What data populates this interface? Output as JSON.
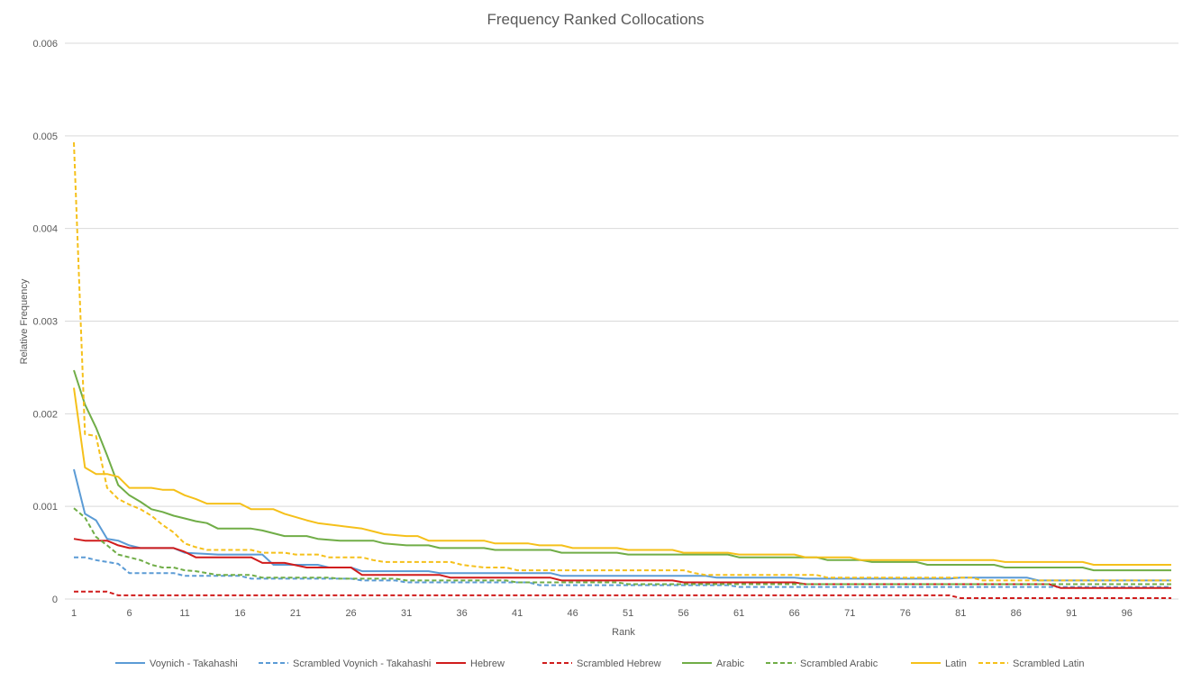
{
  "chart_data": {
    "type": "line",
    "title": "Frequency Ranked Collocations",
    "xlabel": "Rank",
    "ylabel": "Relative Frequency",
    "xlim": [
      1,
      100
    ],
    "ylim": [
      0,
      0.006
    ],
    "x_ticks": [
      1,
      6,
      11,
      16,
      21,
      26,
      31,
      36,
      41,
      46,
      51,
      56,
      61,
      66,
      71,
      76,
      81,
      86,
      91,
      96
    ],
    "y_ticks": [
      "0",
      "0.001",
      "0.002",
      "0.003",
      "0.004",
      "0.005",
      "0.006"
    ],
    "grid": "horizontal",
    "legend_position": "bottom",
    "series": [
      {
        "name": "Voynich - Takahashi",
        "color": "#5B9BD5",
        "dash": "solid",
        "points": [
          [
            1,
            0.0014
          ],
          [
            2,
            0.00092
          ],
          [
            3,
            0.00085
          ],
          [
            4,
            0.00065
          ],
          [
            5,
            0.00063
          ],
          [
            6,
            0.00058
          ],
          [
            7,
            0.00055
          ],
          [
            10,
            0.00055
          ],
          [
            11,
            0.0005
          ],
          [
            14,
            0.00048
          ],
          [
            18,
            0.00048
          ],
          [
            19,
            0.00037
          ],
          [
            23,
            0.00037
          ],
          [
            24,
            0.00034
          ],
          [
            26,
            0.00034
          ],
          [
            27,
            0.0003
          ],
          [
            33,
            0.0003
          ],
          [
            34,
            0.00028
          ],
          [
            44,
            0.00028
          ],
          [
            45,
            0.00025
          ],
          [
            58,
            0.00025
          ],
          [
            59,
            0.00023
          ],
          [
            66,
            0.00023
          ],
          [
            67,
            0.00022
          ],
          [
            80,
            0.00022
          ],
          [
            81,
            0.00023
          ],
          [
            87,
            0.00023
          ],
          [
            88,
            0.0002
          ],
          [
            100,
            0.0002
          ]
        ]
      },
      {
        "name": "Scrambled Voynich - Takahashi",
        "color": "#5B9BD5",
        "dash": "dashed",
        "points": [
          [
            1,
            0.00045
          ],
          [
            2,
            0.00045
          ],
          [
            3,
            0.00042
          ],
          [
            5,
            0.00038
          ],
          [
            6,
            0.00028
          ],
          [
            10,
            0.00028
          ],
          [
            11,
            0.00025
          ],
          [
            16,
            0.00025
          ],
          [
            17,
            0.00022
          ],
          [
            26,
            0.00022
          ],
          [
            27,
            0.0002
          ],
          [
            30,
            0.0002
          ],
          [
            31,
            0.00018
          ],
          [
            42,
            0.00018
          ],
          [
            43,
            0.00015
          ],
          [
            60,
            0.00015
          ],
          [
            61,
            0.00013
          ],
          [
            100,
            0.00013
          ]
        ]
      },
      {
        "name": "Hebrew",
        "color": "#D01C1C",
        "dash": "solid",
        "points": [
          [
            1,
            0.00065
          ],
          [
            2,
            0.00063
          ],
          [
            4,
            0.00063
          ],
          [
            5,
            0.00058
          ],
          [
            6,
            0.00055
          ],
          [
            10,
            0.00055
          ],
          [
            11,
            0.00051
          ],
          [
            12,
            0.00045
          ],
          [
            17,
            0.00045
          ],
          [
            18,
            0.00039
          ],
          [
            20,
            0.00039
          ],
          [
            22,
            0.00034
          ],
          [
            26,
            0.00034
          ],
          [
            27,
            0.00026
          ],
          [
            34,
            0.00026
          ],
          [
            35,
            0.00023
          ],
          [
            44,
            0.00023
          ],
          [
            45,
            0.0002
          ],
          [
            55,
            0.0002
          ],
          [
            56,
            0.00018
          ],
          [
            66,
            0.00018
          ],
          [
            67,
            0.00016
          ],
          [
            89,
            0.00016
          ],
          [
            90,
            0.00012
          ],
          [
            100,
            0.00012
          ]
        ]
      },
      {
        "name": "Scrambled Hebrew",
        "color": "#D01C1C",
        "dash": "dashed",
        "points": [
          [
            1,
            8e-05
          ],
          [
            4,
            8e-05
          ],
          [
            5,
            4e-05
          ],
          [
            80,
            4e-05
          ],
          [
            81,
            1e-05
          ],
          [
            100,
            1e-05
          ]
        ]
      },
      {
        "name": "Arabic",
        "color": "#70AD47",
        "dash": "solid",
        "points": [
          [
            1,
            0.00247
          ],
          [
            2,
            0.0021
          ],
          [
            3,
            0.00185
          ],
          [
            4,
            0.00155
          ],
          [
            5,
            0.00123
          ],
          [
            6,
            0.00112
          ],
          [
            7,
            0.00105
          ],
          [
            8,
            0.00097
          ],
          [
            9,
            0.00094
          ],
          [
            10,
            0.0009
          ],
          [
            11,
            0.00087
          ],
          [
            12,
            0.00084
          ],
          [
            13,
            0.00082
          ],
          [
            14,
            0.00076
          ],
          [
            17,
            0.00076
          ],
          [
            18,
            0.00074
          ],
          [
            20,
            0.00068
          ],
          [
            22,
            0.00068
          ],
          [
            23,
            0.00065
          ],
          [
            25,
            0.00063
          ],
          [
            28,
            0.00063
          ],
          [
            29,
            0.0006
          ],
          [
            31,
            0.00058
          ],
          [
            33,
            0.00058
          ],
          [
            34,
            0.00055
          ],
          [
            38,
            0.00055
          ],
          [
            39,
            0.00053
          ],
          [
            44,
            0.00053
          ],
          [
            45,
            0.0005
          ],
          [
            50,
            0.0005
          ],
          [
            51,
            0.00048
          ],
          [
            60,
            0.00048
          ],
          [
            61,
            0.00045
          ],
          [
            68,
            0.00045
          ],
          [
            69,
            0.00042
          ],
          [
            72,
            0.00042
          ],
          [
            73,
            0.0004
          ],
          [
            77,
            0.0004
          ],
          [
            78,
            0.00037
          ],
          [
            84,
            0.00037
          ],
          [
            85,
            0.00034
          ],
          [
            92,
            0.00034
          ],
          [
            93,
            0.00031
          ],
          [
            100,
            0.00031
          ]
        ]
      },
      {
        "name": "Scrambled Arabic",
        "color": "#70AD47",
        "dash": "dashed",
        "points": [
          [
            1,
            0.00098
          ],
          [
            2,
            0.00088
          ],
          [
            3,
            0.00067
          ],
          [
            4,
            0.00058
          ],
          [
            5,
            0.00048
          ],
          [
            6,
            0.00045
          ],
          [
            7,
            0.00042
          ],
          [
            8,
            0.00037
          ],
          [
            9,
            0.00034
          ],
          [
            10,
            0.00034
          ],
          [
            11,
            0.00031
          ],
          [
            12,
            0.0003
          ],
          [
            14,
            0.00026
          ],
          [
            17,
            0.00026
          ],
          [
            18,
            0.00023
          ],
          [
            24,
            0.00023
          ],
          [
            25,
            0.00022
          ],
          [
            30,
            0.00022
          ],
          [
            31,
            0.0002
          ],
          [
            40,
            0.0002
          ],
          [
            41,
            0.00018
          ],
          [
            50,
            0.00018
          ],
          [
            51,
            0.00016
          ],
          [
            100,
            0.00016
          ]
        ]
      },
      {
        "name": "Latin",
        "color": "#F5C01A",
        "dash": "solid",
        "points": [
          [
            1,
            0.00228
          ],
          [
            2,
            0.00142
          ],
          [
            3,
            0.00135
          ],
          [
            4,
            0.00135
          ],
          [
            5,
            0.00132
          ],
          [
            6,
            0.0012
          ],
          [
            8,
            0.0012
          ],
          [
            9,
            0.00118
          ],
          [
            10,
            0.00118
          ],
          [
            11,
            0.00112
          ],
          [
            12,
            0.00108
          ],
          [
            13,
            0.00103
          ],
          [
            16,
            0.00103
          ],
          [
            17,
            0.00097
          ],
          [
            19,
            0.00097
          ],
          [
            20,
            0.00092
          ],
          [
            22,
            0.00085
          ],
          [
            23,
            0.00082
          ],
          [
            25,
            0.00079
          ],
          [
            27,
            0.00076
          ],
          [
            28,
            0.00073
          ],
          [
            29,
            0.0007
          ],
          [
            31,
            0.00068
          ],
          [
            32,
            0.00068
          ],
          [
            33,
            0.00063
          ],
          [
            38,
            0.00063
          ],
          [
            39,
            0.0006
          ],
          [
            42,
            0.0006
          ],
          [
            43,
            0.00058
          ],
          [
            45,
            0.00058
          ],
          [
            46,
            0.00055
          ],
          [
            50,
            0.00055
          ],
          [
            51,
            0.00053
          ],
          [
            55,
            0.00053
          ],
          [
            56,
            0.0005
          ],
          [
            60,
            0.0005
          ],
          [
            61,
            0.00048
          ],
          [
            66,
            0.00048
          ],
          [
            67,
            0.00045
          ],
          [
            71,
            0.00045
          ],
          [
            72,
            0.00042
          ],
          [
            84,
            0.00042
          ],
          [
            85,
            0.0004
          ],
          [
            92,
            0.0004
          ],
          [
            93,
            0.00037
          ],
          [
            100,
            0.00037
          ]
        ]
      },
      {
        "name": "Scrambled Latin",
        "color": "#F5C01A",
        "dash": "dashed",
        "points": [
          [
            1,
            0.00493
          ],
          [
            2,
            0.00178
          ],
          [
            3,
            0.00176
          ],
          [
            4,
            0.0012
          ],
          [
            5,
            0.00108
          ],
          [
            6,
            0.00102
          ],
          [
            7,
            0.00097
          ],
          [
            8,
            0.0009
          ],
          [
            9,
            0.0008
          ],
          [
            10,
            0.00072
          ],
          [
            11,
            0.0006
          ],
          [
            12,
            0.00056
          ],
          [
            13,
            0.00053
          ],
          [
            17,
            0.00053
          ],
          [
            18,
            0.0005
          ],
          [
            20,
            0.0005
          ],
          [
            21,
            0.00048
          ],
          [
            23,
            0.00048
          ],
          [
            24,
            0.00045
          ],
          [
            27,
            0.00045
          ],
          [
            28,
            0.00042
          ],
          [
            29,
            0.0004
          ],
          [
            35,
            0.0004
          ],
          [
            36,
            0.00037
          ],
          [
            38,
            0.00034
          ],
          [
            40,
            0.00034
          ],
          [
            41,
            0.00031
          ],
          [
            56,
            0.00031
          ],
          [
            57,
            0.00028
          ],
          [
            58,
            0.00026
          ],
          [
            68,
            0.00026
          ],
          [
            69,
            0.00023
          ],
          [
            82,
            0.00023
          ],
          [
            83,
            0.0002
          ],
          [
            100,
            0.0002
          ]
        ]
      }
    ]
  }
}
